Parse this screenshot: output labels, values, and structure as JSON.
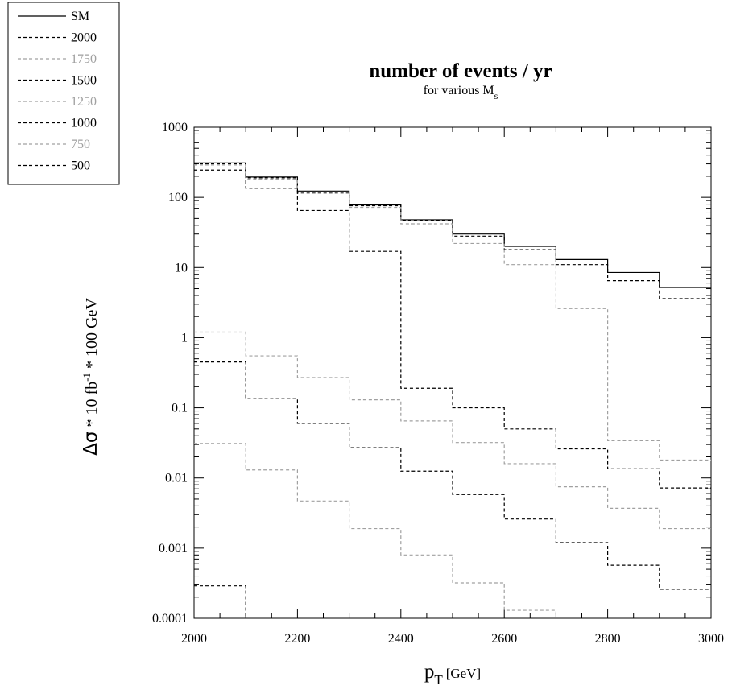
{
  "chart_data": {
    "type": "line",
    "title": "number of events / yr",
    "subtitle": "for various M",
    "subtitle_subscript": "s",
    "xlabel": "p",
    "xlabel_subscript": "T",
    "xlabel_unit": "[GeV]",
    "ylabel": "Δσ * 10 fb-1 * 100 GeV",
    "ylabel_parts": {
      "symbol": "Δσ",
      "mid": " * 10 fb",
      "sup": "-1",
      "tail": " * 100 GeV"
    },
    "x_scale": "linear",
    "y_scale": "log",
    "xlim": [
      2000,
      3000
    ],
    "ylim": [
      0.0001,
      1000
    ],
    "x_ticks": [
      2000,
      2200,
      2400,
      2600,
      2800,
      3000
    ],
    "x_tick_labels": [
      "2000",
      "2200",
      "2400",
      "2600",
      "2800",
      "3000"
    ],
    "y_ticks": [
      0.0001,
      0.001,
      0.01,
      0.1,
      1,
      10,
      100,
      1000
    ],
    "y_tick_labels": [
      "0.0001",
      "0.001",
      "0.01",
      "0.1",
      "1",
      "10",
      "100",
      "1000"
    ],
    "grid": false,
    "legend_position": "top-left, outside plot",
    "bin_edges": [
      2000,
      2100,
      2200,
      2300,
      2400,
      2500,
      2600,
      2700,
      2800,
      2900,
      3000
    ],
    "series": [
      {
        "name": "SM",
        "style": "solid",
        "color": "#000000",
        "values": [
          310,
          195,
          123,
          78,
          48,
          30,
          20,
          13,
          8.5,
          5.2
        ]
      },
      {
        "name": "2000",
        "style": "dashed",
        "color": "#000000",
        "values": [
          300,
          190,
          118,
          76,
          47,
          28,
          18,
          11,
          6.5,
          3.6
        ]
      },
      {
        "name": "1750",
        "style": "dashed",
        "color": "#a0a0a0",
        "values": [
          290,
          182,
          114,
          72,
          42,
          22,
          11,
          2.6,
          0.034,
          0.018
        ]
      },
      {
        "name": "1500",
        "style": "dashed",
        "color": "#000000",
        "values": [
          245,
          135,
          65,
          17,
          0.19,
          0.1,
          0.05,
          0.026,
          0.0135,
          0.0072
        ]
      },
      {
        "name": "1250",
        "style": "dashed",
        "color": "#a0a0a0",
        "values": [
          1.2,
          0.55,
          0.27,
          0.13,
          0.065,
          0.032,
          0.016,
          0.0075,
          0.0037,
          0.0019
        ]
      },
      {
        "name": "1000",
        "style": "dashed",
        "color": "#000000",
        "values": [
          0.45,
          0.135,
          0.06,
          0.027,
          0.0125,
          0.0058,
          0.0026,
          0.0012,
          0.00057,
          0.00026
        ]
      },
      {
        "name": "750",
        "style": "dashed",
        "color": "#a0a0a0",
        "values": [
          0.031,
          0.013,
          0.0047,
          0.0019,
          0.0008,
          0.00032,
          0.00013,
          null,
          null,
          null
        ]
      },
      {
        "name": "500",
        "style": "dashed",
        "color": "#000000",
        "values": [
          0.00029,
          null,
          null,
          null,
          null,
          null,
          null,
          null,
          null,
          null
        ]
      }
    ]
  }
}
